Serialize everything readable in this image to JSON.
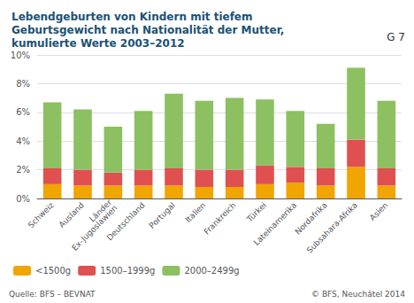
{
  "chart_data": {
    "type": "bar",
    "stacked": true,
    "title": "Lebendgeburten von Kindern mit tiefem\nGeburtsgewicht nach Nationalität der Mutter,\nkumulierte Werte 2003–2012",
    "annotations": [
      "G 7",
      "Quelle: BFS – BEVNAT",
      "© BFS, Neuchâtel 2014"
    ],
    "categories": [
      "Schweiz",
      "Ausland",
      "Länder\nEx-Jugoslawien",
      "Deutschland",
      "Portugal",
      "Italien",
      "Frankreich",
      "Türkei",
      "Lateinamerika",
      "Nordafrika",
      "Subsahara-Afrika",
      "Asien"
    ],
    "series": [
      {
        "name": "<1500g",
        "color": "#f0a500",
        "values": [
          1.0,
          0.9,
          0.9,
          0.9,
          0.9,
          0.8,
          0.8,
          1.0,
          1.1,
          0.9,
          2.2,
          0.9
        ]
      },
      {
        "name": "1500–1999g",
        "color": "#e05050",
        "values": [
          1.1,
          1.1,
          0.9,
          1.1,
          1.2,
          1.2,
          1.2,
          1.3,
          1.1,
          1.2,
          1.9,
          1.2
        ]
      },
      {
        "name": "2000–2499g",
        "color": "#8dc060",
        "values": [
          4.6,
          4.2,
          3.2,
          4.1,
          5.2,
          4.8,
          5.0,
          4.6,
          3.9,
          3.1,
          5.0,
          4.7
        ]
      }
    ],
    "ylim": [
      0,
      10
    ],
    "yticks": [
      {
        "value": 0,
        "label": "0%"
      },
      {
        "value": 2,
        "label": "2%"
      },
      {
        "value": 4,
        "label": "4%"
      },
      {
        "value": 6,
        "label": "6%"
      },
      {
        "value": 8,
        "label": "8%"
      },
      {
        "value": 10,
        "label": "10%"
      }
    ],
    "grid": true,
    "legend": "bottom"
  }
}
